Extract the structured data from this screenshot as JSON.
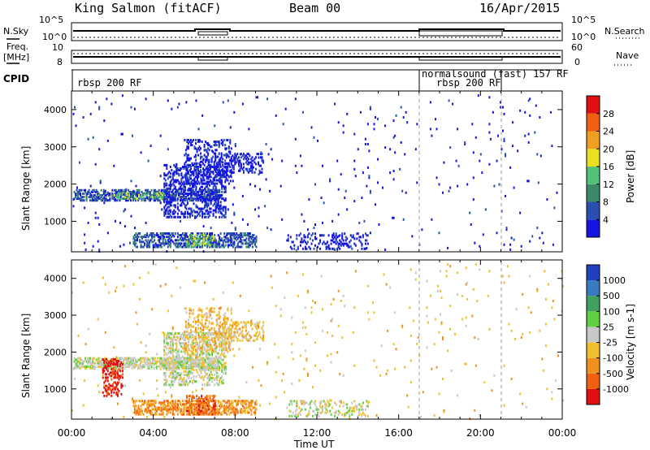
{
  "header": {
    "station": "King Salmon (fitACF)",
    "beam": "Beam 00",
    "date": "16/Apr/2015"
  },
  "status_panels": {
    "nsky_label": "N.Sky",
    "nsky_ticks": [
      "10^5",
      "10^0"
    ],
    "nsearch_label": "N.Search",
    "nsearch_ticks": [
      "10^5",
      "10^0"
    ],
    "freq_label_1": "Freq.",
    "freq_label_2": "[MHz]",
    "freq_ticks": [
      "10",
      "8"
    ],
    "nave_label": "Nave",
    "nave_ticks": [
      "60",
      "0"
    ],
    "cpid_label": "CPID",
    "cpid_segments": [
      {
        "start_h": 0.0,
        "end_h": 17.0,
        "label": "rbsp 200 RF"
      },
      {
        "start_h": 17.0,
        "end_h": 24.0,
        "label": "normalsound (fast) 157 RF"
      },
      {
        "start_h": 17.0,
        "end_h": 21.0,
        "label": "rbsp 200 RF"
      }
    ]
  },
  "chart_data": [
    {
      "type": "heatmap",
      "name": "power",
      "ylabel": "Slant Range [km]",
      "xlabel": "",
      "xlim_hours": [
        0,
        24
      ],
      "ylim": [
        180,
        4500
      ],
      "yticks": [
        1000,
        2000,
        3000,
        4000
      ],
      "colorbar": {
        "label": "Power [dB]",
        "range": [
          0,
          32
        ],
        "ticks": [
          4,
          8,
          12,
          16,
          20,
          24,
          28
        ],
        "colors": [
          "#1515e0",
          "#2a4fb0",
          "#3d8a6a",
          "#52c27a",
          "#e8e020",
          "#f0a020",
          "#f06010",
          "#e01010"
        ]
      },
      "scatter_regions": [
        {
          "t": [
            0.1,
            7.2
          ],
          "r": [
            1550,
            1850
          ],
          "density": 0.55,
          "color_level": 1
        },
        {
          "t": [
            2.0,
            4.5
          ],
          "r": [
            1600,
            1750
          ],
          "density": 0.35,
          "color_level": 3
        },
        {
          "t": [
            4.5,
            7.5
          ],
          "r": [
            1100,
            2500
          ],
          "density": 0.35,
          "color_level": 0
        },
        {
          "t": [
            5.5,
            7.8
          ],
          "r": [
            2000,
            3200
          ],
          "density": 0.25,
          "color_level": 0
        },
        {
          "t": [
            7.0,
            9.4
          ],
          "r": [
            2300,
            2800
          ],
          "density": 0.3,
          "color_level": 0
        },
        {
          "t": [
            3.0,
            9.0
          ],
          "r": [
            300,
            700
          ],
          "density": 0.5,
          "color_level": 1
        },
        {
          "t": [
            5.6,
            7.0
          ],
          "r": [
            300,
            650
          ],
          "density": 0.35,
          "color_level": 3
        },
        {
          "t": [
            10.5,
            14.5
          ],
          "r": [
            250,
            700
          ],
          "density": 0.25,
          "color_level": 0
        },
        {
          "t": [
            0.0,
            24.0
          ],
          "r": [
            180,
            4400
          ],
          "density": 0.01,
          "color_level": 0
        }
      ]
    },
    {
      "type": "heatmap",
      "name": "velocity",
      "ylabel": "Slant Range [km]",
      "xlabel": "Time UT",
      "xlim_hours": [
        0,
        24
      ],
      "xticks": [
        "00:00",
        "04:00",
        "08:00",
        "12:00",
        "16:00",
        "20:00",
        "00:00"
      ],
      "ylim": [
        180,
        4500
      ],
      "yticks": [
        1000,
        2000,
        3000,
        4000
      ],
      "colorbar": {
        "label": "Velocity [m s-1]",
        "ticks": [
          "1000",
          "500",
          "100",
          "25",
          "-25",
          "-100",
          "-500",
          "-1000"
        ],
        "colors": [
          "#2040c0",
          "#3a7ac0",
          "#40a060",
          "#60d040",
          "#c8c8c8",
          "#f0c030",
          "#f09020",
          "#f06010",
          "#e01010"
        ]
      },
      "scatter_regions": [
        {
          "t": [
            0.1,
            7.2
          ],
          "r": [
            1550,
            1850
          ],
          "density": 0.55,
          "color_level": 4
        },
        {
          "t": [
            1.5,
            2.5
          ],
          "r": [
            800,
            1800
          ],
          "density": 0.35,
          "color_level": 8
        },
        {
          "t": [
            4.5,
            7.5
          ],
          "r": [
            1100,
            2500
          ],
          "density": 0.35,
          "color_level": 4
        },
        {
          "t": [
            5.5,
            7.8
          ],
          "r": [
            2000,
            3200
          ],
          "density": 0.25,
          "color_level": 5
        },
        {
          "t": [
            7.0,
            9.4
          ],
          "r": [
            2300,
            2800
          ],
          "density": 0.3,
          "color_level": 5
        },
        {
          "t": [
            3.0,
            9.0
          ],
          "r": [
            300,
            700
          ],
          "density": 0.5,
          "color_level": 6
        },
        {
          "t": [
            5.6,
            7.0
          ],
          "r": [
            300,
            800
          ],
          "density": 0.45,
          "color_level": 7
        },
        {
          "t": [
            10.5,
            14.5
          ],
          "r": [
            250,
            700
          ],
          "density": 0.25,
          "color_level": 4
        },
        {
          "t": [
            0.0,
            24.0
          ],
          "r": [
            180,
            4400
          ],
          "density": 0.01,
          "color_level": 5
        }
      ]
    }
  ]
}
